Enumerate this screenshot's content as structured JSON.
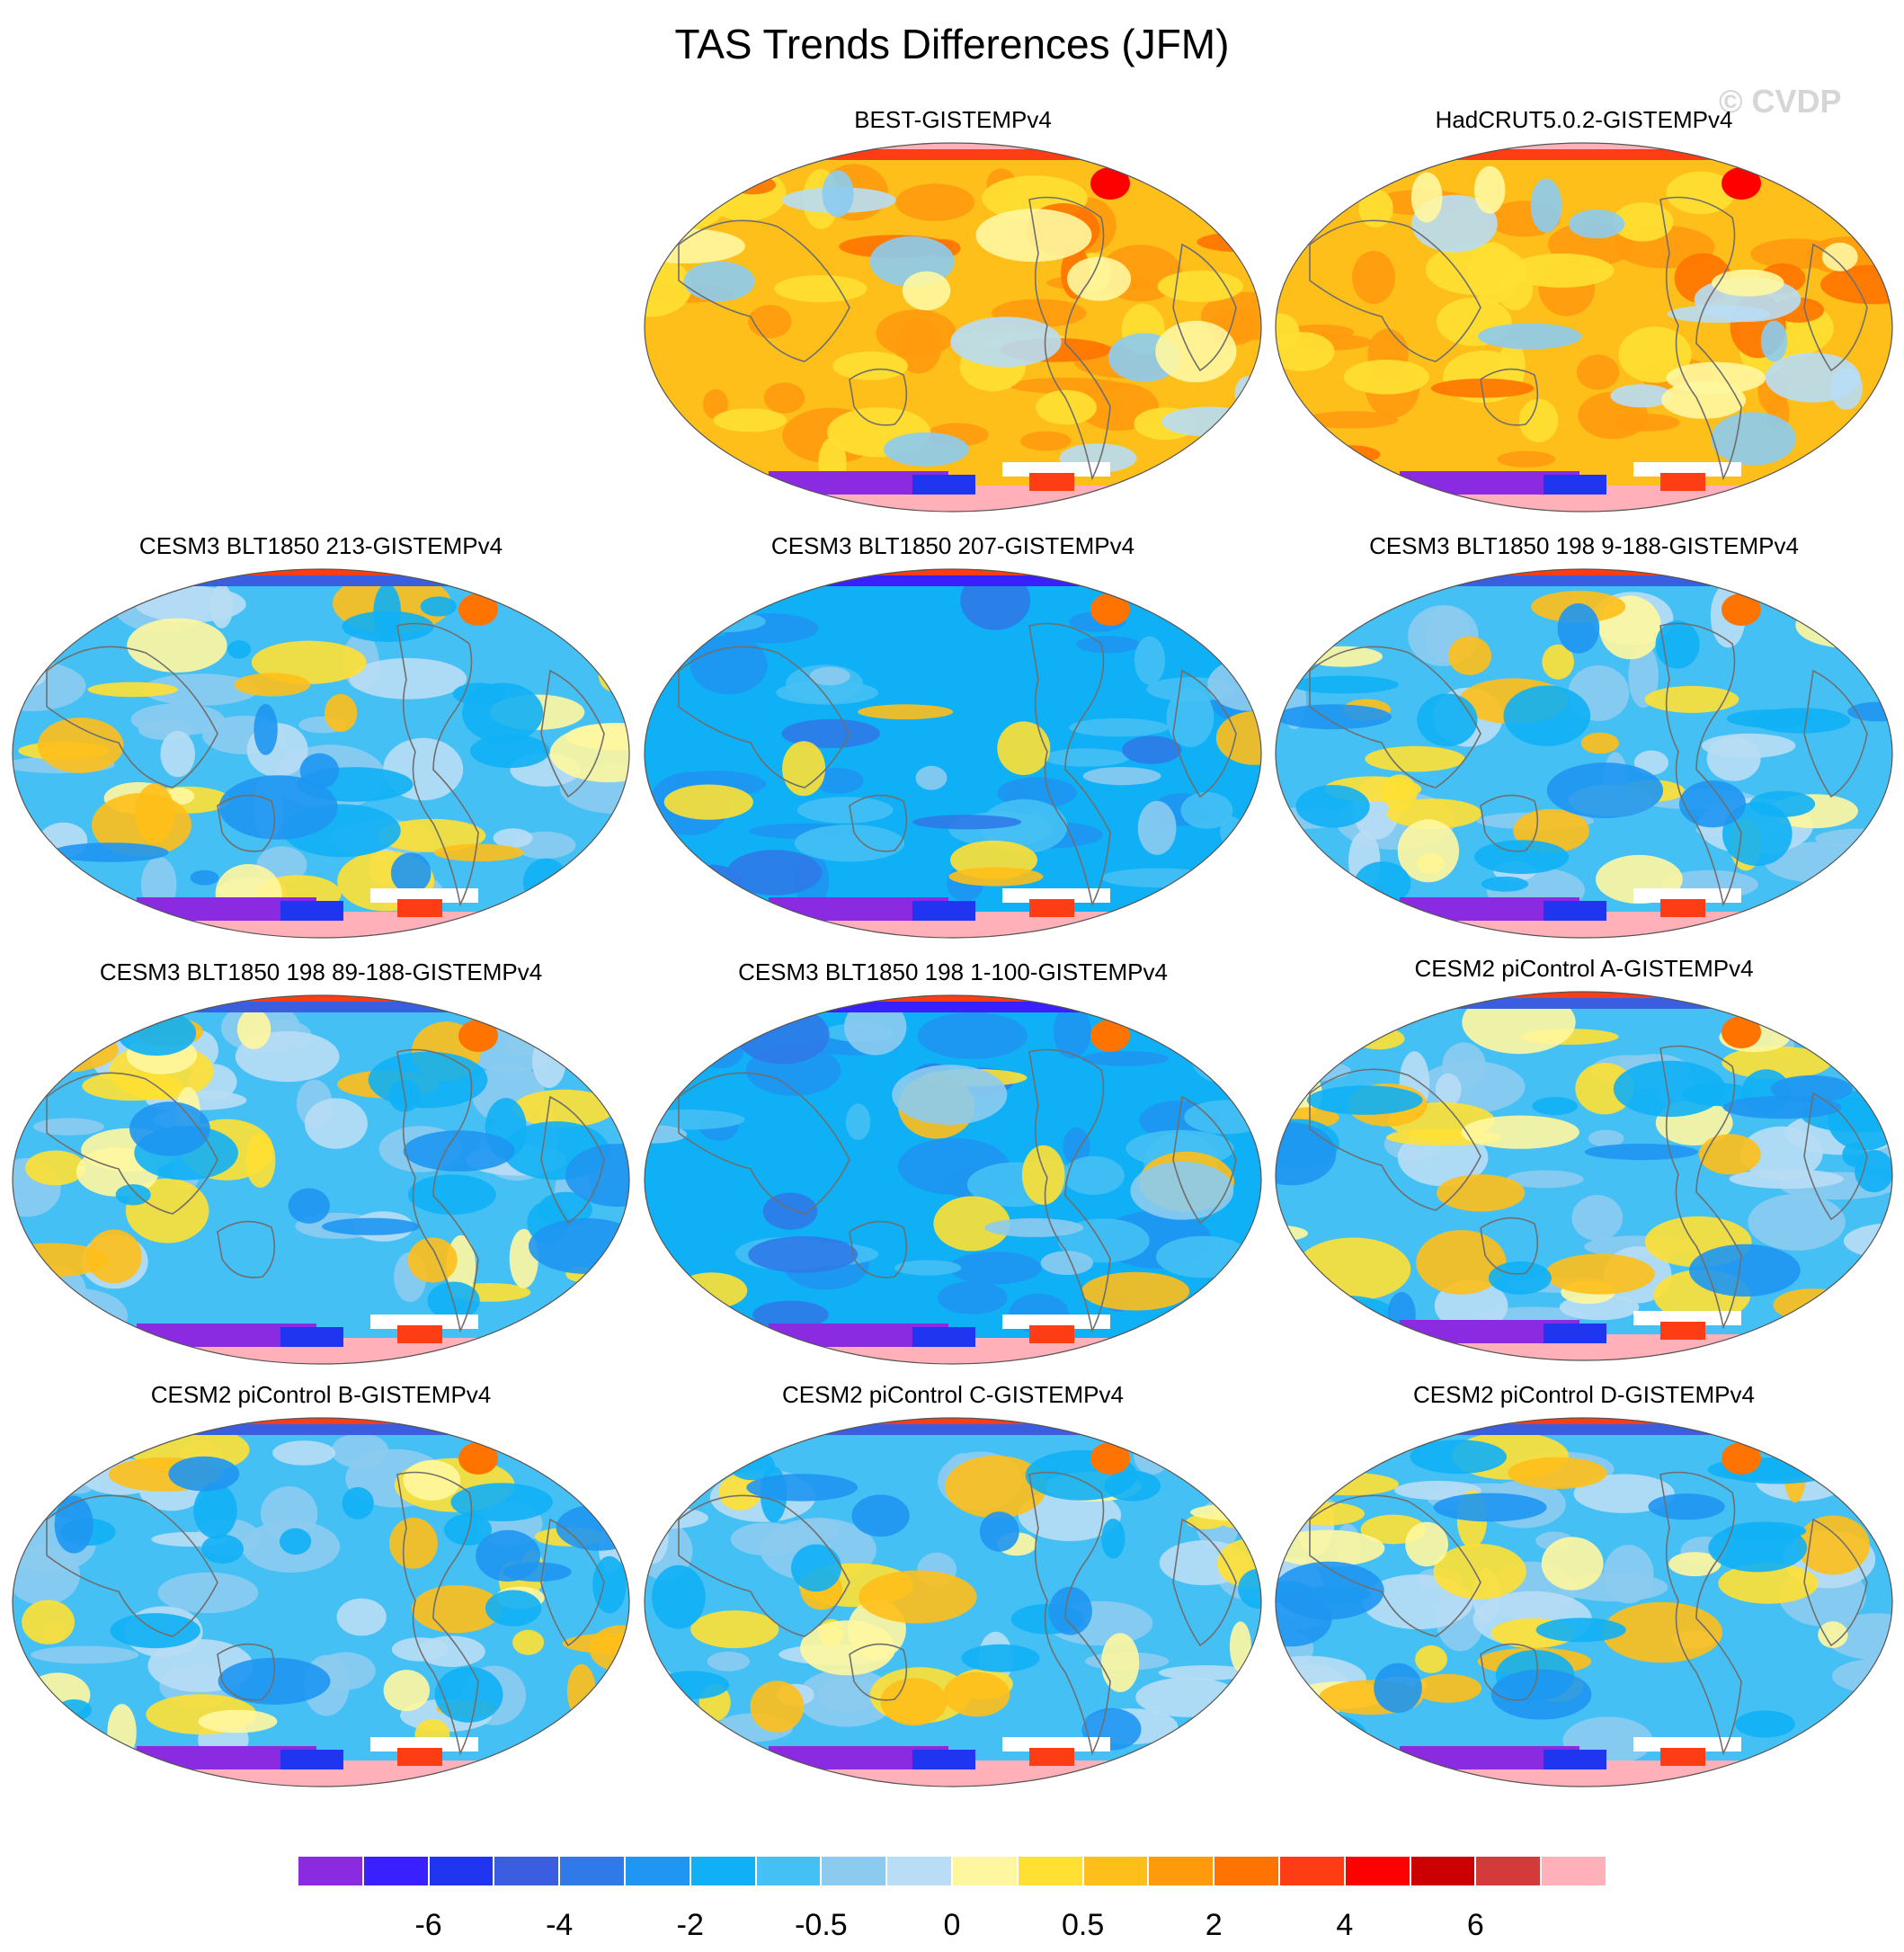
{
  "title": "TAS Trends Differences (JFM)",
  "watermark": "© CVDP",
  "panels": [
    {
      "title": "BEST-GISTEMPv4",
      "style": "obs-warm"
    },
    {
      "title": "HadCRUT5.0.2-GISTEMPv4",
      "style": "obs-warm"
    },
    {
      "title": "CESM3 BLT1850 213-GISTEMPv4",
      "style": "model-mixed"
    },
    {
      "title": "CESM3 BLT1850 207-GISTEMPv4",
      "style": "model-cool"
    },
    {
      "title": "CESM3 BLT1850 198 9-188-GISTEMPv4",
      "style": "model-mixed"
    },
    {
      "title": "CESM3 BLT1850 198 89-188-GISTEMPv4",
      "style": "model-mixed"
    },
    {
      "title": "CESM3 BLT1850 198 1-100-GISTEMPv4",
      "style": "model-cool"
    },
    {
      "title": "CESM2 piControl A-GISTEMPv4",
      "style": "model-mixed"
    },
    {
      "title": "CESM2 piControl B-GISTEMPv4",
      "style": "model-mixed"
    },
    {
      "title": "CESM2 piControl C-GISTEMPv4",
      "style": "model-mixed"
    },
    {
      "title": "CESM2 piControl D-GISTEMPv4",
      "style": "model-mixed"
    }
  ],
  "colorbar": {
    "colors": [
      "#8a2be2",
      "#3a1fff",
      "#1f35f0",
      "#3b5ee0",
      "#2f7ae8",
      "#1e96f2",
      "#0fb0f5",
      "#45c0f5",
      "#8ccbef",
      "#b8ddf5",
      "#fff7a0",
      "#ffe033",
      "#ffbf1a",
      "#ff9a0d",
      "#ff7300",
      "#ff3d14",
      "#ff0000",
      "#cc0000",
      "#d43a3a",
      "#ffb0b8"
    ],
    "labels": [
      "-6",
      "-4",
      "-2",
      "-0.5",
      "0",
      "0.5",
      "2",
      "4",
      "6"
    ]
  }
}
